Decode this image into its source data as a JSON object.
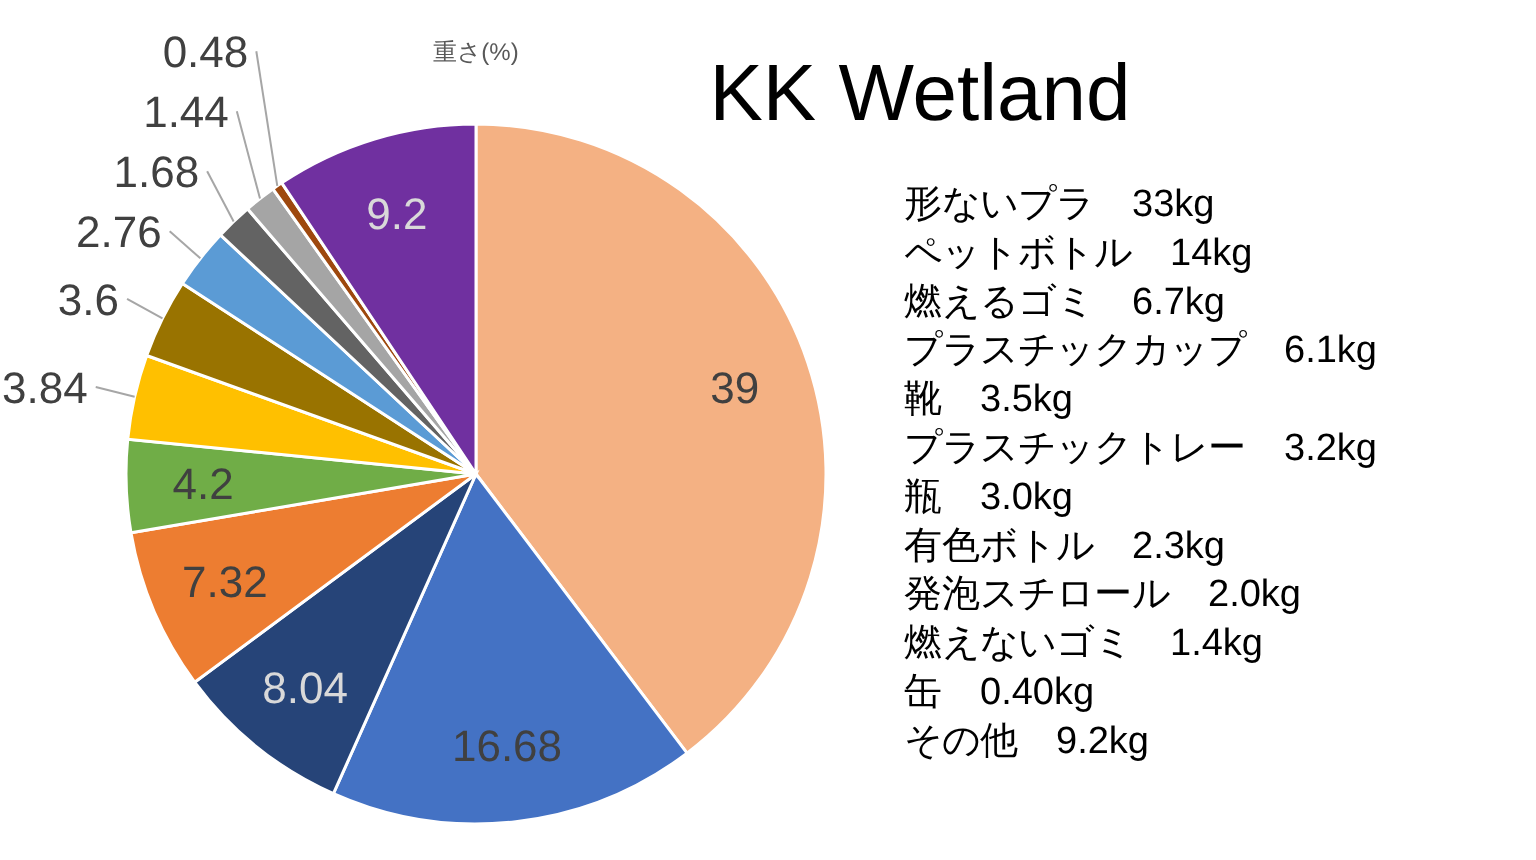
{
  "chart_data": {
    "type": "pie",
    "title": "KK Wetland",
    "subtitle": "重さ(%)",
    "categories": [
      null,
      null,
      null,
      null,
      null,
      null,
      null,
      null,
      null,
      null,
      null,
      null
    ],
    "values": [
      39,
      16.68,
      8.04,
      7.32,
      4.2,
      3.84,
      3.6,
      2.76,
      1.68,
      1.44,
      0.48,
      9.2
    ],
    "colors": [
      "#f4b183",
      "#4472c4",
      "#264478",
      "#ed7d31",
      "#70ad47",
      "#ffc000",
      "#997300",
      "#5b9bd5",
      "#636363",
      "#a5a5a5",
      "#9e480e",
      "#7030a0"
    ],
    "data_labels": true,
    "annotations": [
      "形ないプラ　33kg",
      "ペットボトル　14kg",
      "燃えるゴミ　6.7kg",
      "プラスチックカップ　6.1kg",
      "靴　3.5kg",
      "プラスチックトレー　3.2kg",
      "瓶　3.0kg",
      "有色ボトル　2.3kg",
      "発泡スチロール　2.0kg",
      "燃えないゴミ　1.4kg",
      "缶　0.40kg",
      "その他　9.2kg"
    ]
  }
}
